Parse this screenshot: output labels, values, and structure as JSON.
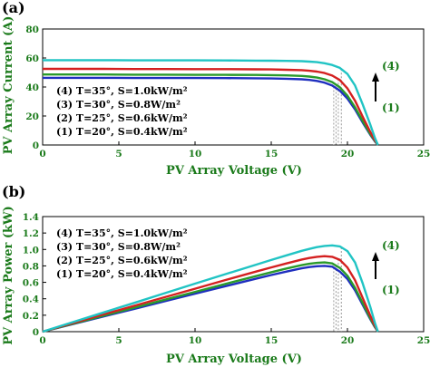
{
  "colors": {
    "text": "#1a7a1a",
    "series": [
      "#1f2fbf",
      "#2a9a2a",
      "#d42020",
      "#21c4c4"
    ],
    "mpp_marker": "#999999"
  },
  "chart_data": [
    {
      "type": "line",
      "panel_label": "(a)",
      "xlabel": "PV Array Voltage (V)",
      "ylabel": "PV Array Current (A)",
      "xlim": [
        0,
        25
      ],
      "ylim": [
        0,
        80
      ],
      "xticks": [
        "0",
        "5",
        "10",
        "15",
        "20",
        "25"
      ],
      "yticks": [
        "0",
        "20",
        "40",
        "60",
        "80"
      ],
      "legend_lines": [
        "(4) T=35°, S=1.0kW/m²",
        "(3) T=30°, S=0.8W/m²",
        "(2) T=25°, S=0.6kW/m²",
        "(1) T=20°, S=0.4kW/m²"
      ],
      "marker_top": "(4)",
      "marker_bottom": "(1)",
      "series": [
        {
          "x": [
            0,
            2,
            4,
            6,
            8,
            10,
            12,
            14,
            15,
            16,
            17,
            17.5,
            18,
            18.5,
            19,
            19.5,
            20,
            20.5,
            21,
            21.5,
            21.8,
            22.0
          ],
          "y": [
            46.3,
            46.3,
            46.3,
            46.2,
            46.2,
            46.2,
            46.1,
            46.0,
            45.9,
            45.7,
            45.3,
            44.9,
            44.2,
            43.0,
            41.0,
            37.5,
            32.0,
            24.5,
            15.5,
            7.0,
            2.5,
            0
          ]
        },
        {
          "x": [
            0,
            2,
            4,
            6,
            8,
            10,
            12,
            14,
            15,
            16,
            17,
            17.5,
            18,
            18.5,
            19,
            19.5,
            20,
            20.5,
            21,
            21.5,
            21.8,
            22.0
          ],
          "y": [
            48.6,
            48.6,
            48.6,
            48.5,
            48.5,
            48.4,
            48.4,
            48.3,
            48.2,
            48.0,
            47.6,
            47.2,
            46.5,
            45.3,
            43.4,
            39.8,
            34.0,
            26.0,
            16.5,
            7.5,
            2.8,
            0
          ]
        },
        {
          "x": [
            0,
            2,
            4,
            6,
            8,
            10,
            12,
            14,
            15,
            16,
            17,
            17.5,
            18,
            18.5,
            19,
            19.5,
            20,
            20.5,
            21,
            21.5,
            21.8,
            22.0
          ],
          "y": [
            52.5,
            52.5,
            52.5,
            52.4,
            52.4,
            52.3,
            52.3,
            52.2,
            52.1,
            51.9,
            51.6,
            51.2,
            50.6,
            49.6,
            47.9,
            44.8,
            39.0,
            30.5,
            19.5,
            9.0,
            3.3,
            0
          ]
        },
        {
          "x": [
            0,
            2,
            4,
            6,
            8,
            10,
            12,
            14,
            15,
            16,
            17,
            17.5,
            18,
            18.5,
            19,
            19.5,
            20,
            20.5,
            21,
            21.5,
            21.8,
            22.0
          ],
          "y": [
            58.5,
            58.5,
            58.5,
            58.4,
            58.4,
            58.4,
            58.3,
            58.2,
            58.1,
            58.0,
            57.8,
            57.5,
            57.1,
            56.4,
            55.2,
            53.2,
            49.0,
            41.0,
            28.0,
            14.0,
            5.0,
            0
          ]
        }
      ],
      "mpp_voltages": [
        19.1,
        19.25,
        19.4,
        19.6
      ]
    },
    {
      "type": "line",
      "panel_label": "(b)",
      "xlabel": "PV Array Voltage (V)",
      "ylabel": "PV Array Power (kW)",
      "xlim": [
        0,
        25
      ],
      "ylim": [
        0,
        1.4
      ],
      "xticks": [
        "0",
        "5",
        "10",
        "15",
        "20",
        "25"
      ],
      "yticks": [
        "0",
        "0.2",
        "0.4",
        "0.6",
        "0.8",
        "1.0",
        "1.2",
        "1.4"
      ],
      "legend_lines": [
        "(4) T=35°, S=1.0kW/m²",
        "(3) T=30°, S=0.8W/m²",
        "(2) T=25°, S=0.6kW/m²",
        "(1) T=20°, S=0.4kW/m²"
      ],
      "marker_top": "(4)",
      "marker_bottom": "(1)",
      "series": [
        {
          "x": [
            0,
            2,
            4,
            6,
            8,
            10,
            12,
            14,
            15,
            16,
            17,
            17.5,
            18,
            18.5,
            19,
            19.5,
            20,
            20.5,
            21,
            21.5,
            21.8,
            22.0
          ],
          "y": [
            0,
            0.093,
            0.185,
            0.277,
            0.37,
            0.462,
            0.553,
            0.644,
            0.689,
            0.731,
            0.77,
            0.786,
            0.796,
            0.8,
            0.79,
            0.731,
            0.64,
            0.502,
            0.326,
            0.151,
            0.055,
            0
          ]
        },
        {
          "x": [
            0,
            2,
            4,
            6,
            8,
            10,
            12,
            14,
            15,
            16,
            17,
            17.5,
            18,
            18.5,
            19,
            19.5,
            20,
            20.5,
            21,
            21.5,
            21.8,
            22.0
          ],
          "y": [
            0,
            0.097,
            0.194,
            0.291,
            0.388,
            0.484,
            0.581,
            0.676,
            0.723,
            0.768,
            0.809,
            0.826,
            0.837,
            0.842,
            0.83,
            0.776,
            0.68,
            0.533,
            0.347,
            0.161,
            0.061,
            0
          ]
        },
        {
          "x": [
            0,
            2,
            4,
            6,
            8,
            10,
            12,
            14,
            15,
            16,
            17,
            17.5,
            18,
            18.5,
            19,
            19.5,
            20,
            20.5,
            21,
            21.5,
            21.8,
            22.0
          ],
          "y": [
            0,
            0.105,
            0.21,
            0.314,
            0.419,
            0.523,
            0.628,
            0.731,
            0.782,
            0.83,
            0.877,
            0.896,
            0.911,
            0.918,
            0.91,
            0.874,
            0.78,
            0.625,
            0.41,
            0.194,
            0.072,
            0
          ]
        },
        {
          "x": [
            0,
            2,
            4,
            6,
            8,
            10,
            12,
            14,
            15,
            16,
            17,
            17.5,
            18,
            18.5,
            19,
            19.5,
            20,
            20.5,
            21,
            21.5,
            21.8,
            22.0
          ],
          "y": [
            0,
            0.117,
            0.234,
            0.35,
            0.467,
            0.584,
            0.7,
            0.815,
            0.872,
            0.928,
            0.983,
            1.006,
            1.028,
            1.043,
            1.049,
            1.037,
            0.98,
            0.841,
            0.588,
            0.301,
            0.109,
            0
          ]
        }
      ],
      "mpp_voltages": [
        19.1,
        19.25,
        19.4,
        19.6
      ]
    }
  ]
}
